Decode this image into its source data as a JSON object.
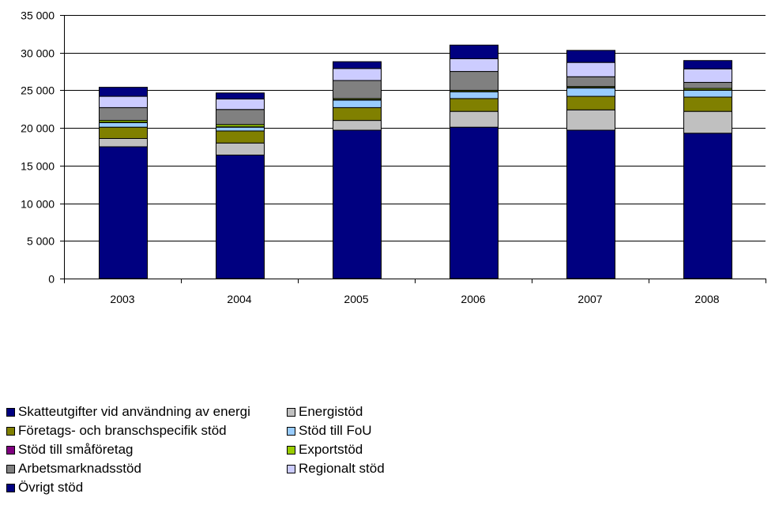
{
  "chart_data": {
    "type": "bar",
    "stacked": true,
    "categories": [
      "2003",
      "2004",
      "2005",
      "2006",
      "2007",
      "2008"
    ],
    "ylim": [
      0,
      35000
    ],
    "yticks": [
      0,
      5000,
      10000,
      15000,
      20000,
      25000,
      30000,
      35000
    ],
    "ytick_labels": [
      "0",
      "5 000",
      "10 000",
      "15 000",
      "20 000",
      "25 000",
      "30 000",
      "35 000"
    ],
    "grid": "horizontal",
    "legend_position": "bottom",
    "series": [
      {
        "name": "Skatteutgifter vid användning av energi",
        "color": "#000080",
        "values": [
          17500,
          16400,
          19700,
          20100,
          19700,
          19300
        ]
      },
      {
        "name": "Energistöd",
        "color": "#C0C0C0",
        "values": [
          1100,
          1600,
          1300,
          2100,
          2700,
          2900
        ]
      },
      {
        "name": "Företags- och branschspecifik stöd",
        "color": "#808000",
        "values": [
          1500,
          1600,
          1700,
          1700,
          1800,
          1900
        ]
      },
      {
        "name": "Stöd till FoU",
        "color": "#99CCFF",
        "values": [
          600,
          500,
          1000,
          900,
          1100,
          900
        ]
      },
      {
        "name": "Stöd till småföretag",
        "color": "#800080",
        "values": [
          50,
          50,
          50,
          50,
          50,
          50
        ]
      },
      {
        "name": "Exportstöd",
        "color": "#99CC00",
        "values": [
          250,
          300,
          150,
          150,
          150,
          200
        ]
      },
      {
        "name": "Arbetsmarknadsstöd",
        "color": "#808080",
        "values": [
          1700,
          2000,
          2400,
          2500,
          1300,
          800
        ]
      },
      {
        "name": "Regionalt stöd",
        "color": "#CCCCFF",
        "values": [
          1500,
          1400,
          1600,
          1700,
          1900,
          1800
        ]
      },
      {
        "name": "Övrigt stöd",
        "color": "#000080",
        "values": [
          1200,
          800,
          900,
          1800,
          1600,
          1100
        ]
      }
    ]
  }
}
